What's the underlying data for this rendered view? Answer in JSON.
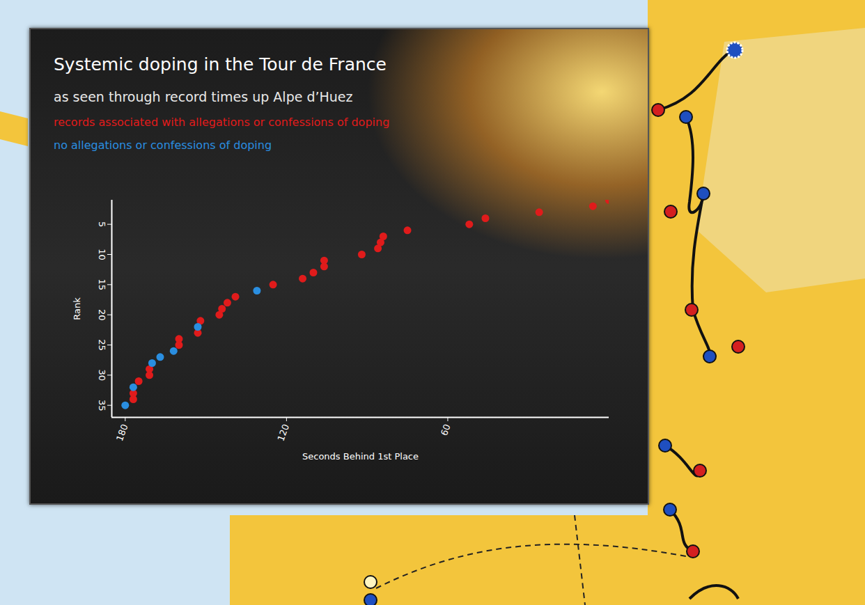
{
  "chart_data": {
    "type": "scatter",
    "title": "Systemic doping in the Tour de France",
    "subtitle": "as seen through record times up Alpe d’Huez",
    "x_label": "Seconds Behind 1st Place",
    "y_label": "Rank",
    "xlim": [
      185,
      0
    ],
    "xticks": [
      180,
      120,
      60
    ],
    "ylim": [
      1,
      37
    ],
    "yticks": [
      5,
      10,
      15,
      20,
      25,
      30,
      35
    ],
    "grid": false,
    "series": [
      {
        "name": "records associated with allegations or confessions of doping",
        "color": "#e01b1b",
        "marker": "circle",
        "x": [
          0,
          6,
          26,
          46,
          52,
          75,
          84,
          85,
          86,
          92,
          106,
          106,
          110,
          114,
          125,
          139,
          142,
          144,
          145,
          152,
          160,
          160,
          171,
          171,
          175,
          177,
          177,
          153
        ],
        "values": [
          1,
          2,
          3,
          4,
          5,
          6,
          7,
          8,
          9,
          10,
          11,
          12,
          13,
          14,
          15,
          17,
          18,
          19,
          20,
          21,
          24,
          25,
          29,
          30,
          31,
          33,
          34,
          23
        ]
      },
      {
        "name": "no allegations or confessions of doping",
        "color": "#2a8ee0",
        "marker": "circle",
        "x": [
          131,
          153,
          162,
          167,
          170,
          177,
          180
        ],
        "values": [
          16,
          22,
          26,
          27,
          28,
          32,
          35
        ]
      }
    ]
  }
}
